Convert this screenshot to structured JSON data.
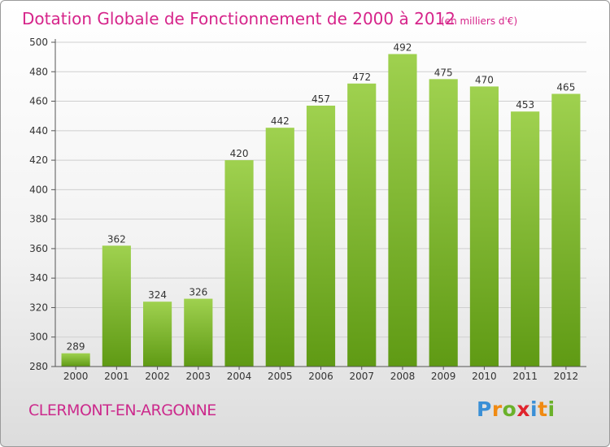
{
  "chart_data": {
    "type": "bar",
    "title": "Dotation Globale de Fonctionnement de 2000 à 2012",
    "subtitle": "(en milliers d'€)",
    "categories": [
      "2000",
      "2001",
      "2002",
      "2003",
      "2004",
      "2005",
      "2006",
      "2007",
      "2008",
      "2009",
      "2010",
      "2011",
      "2012"
    ],
    "values": [
      289,
      362,
      324,
      326,
      420,
      442,
      457,
      472,
      492,
      475,
      470,
      453,
      465
    ],
    "data_labels": [
      "289",
      "362",
      "324",
      "326",
      "420",
      "442",
      "457",
      "472",
      "492",
      "475",
      "470",
      "453",
      "465"
    ],
    "yticks": [
      "280",
      "300",
      "320",
      "340",
      "360",
      "380",
      "400",
      "420",
      "440",
      "460",
      "480",
      "500"
    ],
    "ylim": [
      280,
      500
    ],
    "xlabel": "",
    "ylabel": "",
    "grid": true,
    "bar_color_top": "#9fd14f",
    "bar_color_bottom": "#5f9a14"
  },
  "footer": {
    "commune": "CLERMONT-EN-ARGONNE",
    "logo_letters": [
      "P",
      "r",
      "o",
      "x",
      "i",
      "t",
      "i"
    ],
    "logo_colors": [
      "#3a8fd6",
      "#f08a12",
      "#6ab12a",
      "#e0242d",
      "#3a8fd6",
      "#f08a12",
      "#6ab12a"
    ]
  }
}
